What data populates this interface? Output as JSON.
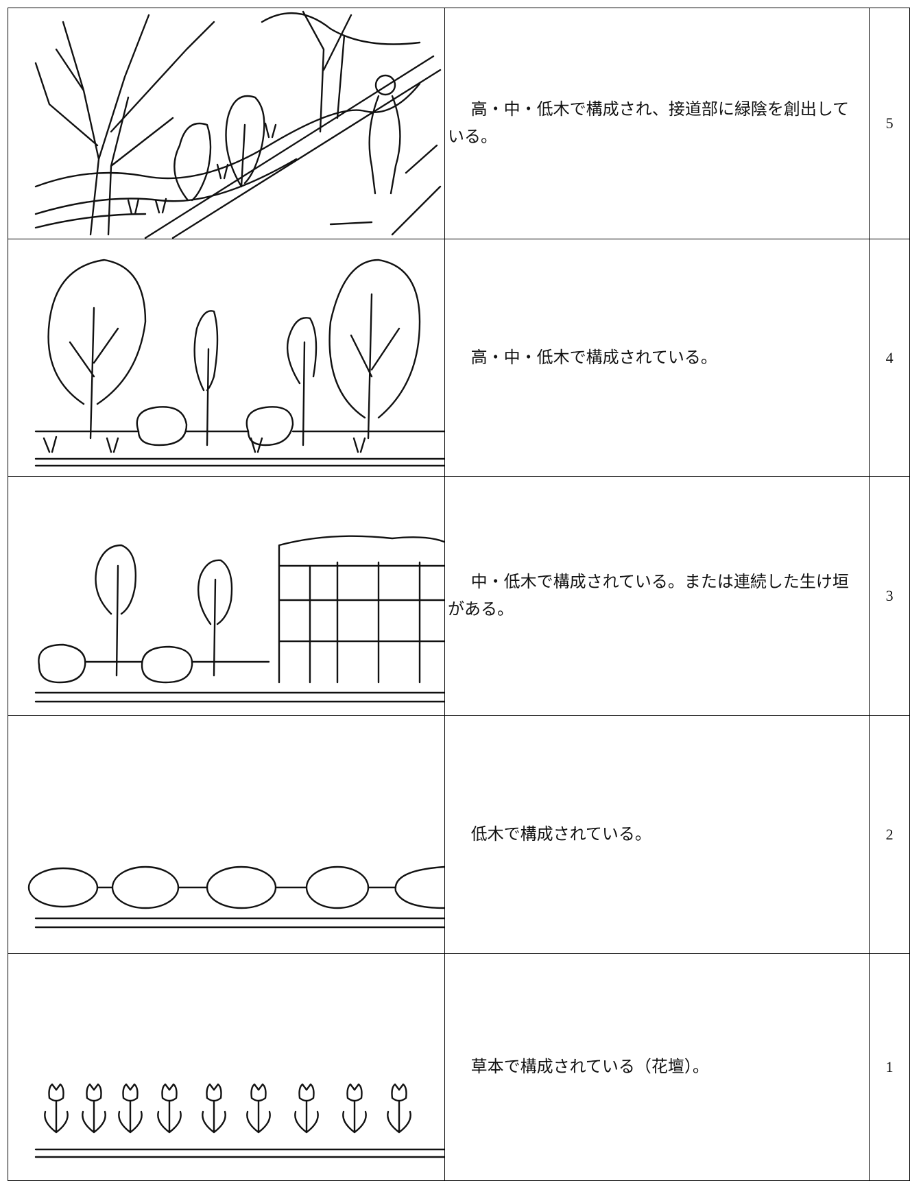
{
  "table": {
    "rows": [
      {
        "text": "高・中・低木で構成され、接道部に緑陰を創出している。",
        "score": "5"
      },
      {
        "text": "高・中・低木で構成されている。",
        "score": "4"
      },
      {
        "text": "中・低木で構成されている。または連続した生け垣がある。",
        "score": "3"
      },
      {
        "text": "低木で構成されている。",
        "score": "2"
      },
      {
        "text": "草本で構成されている（花壇）。",
        "score": "1"
      }
    ]
  }
}
